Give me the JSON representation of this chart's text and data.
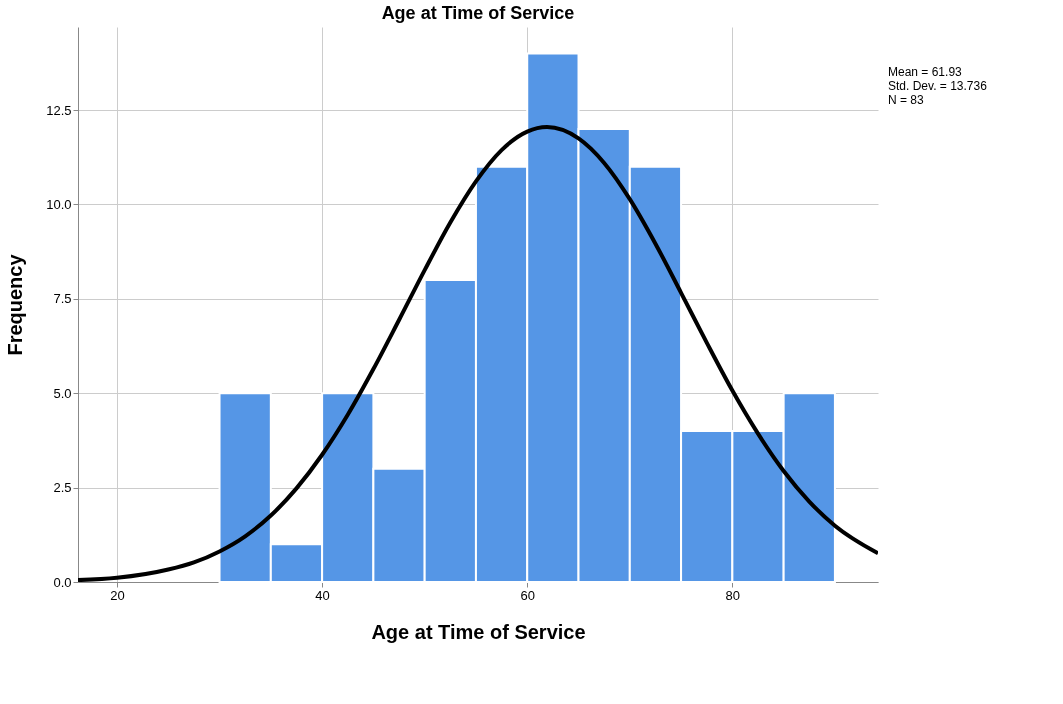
{
  "chart_data": {
    "type": "histogram",
    "title": "Age at Time of Service",
    "xlabel": "Age at Time of Service",
    "ylabel": "Frequency",
    "bins": [
      30,
      35,
      40,
      45,
      50,
      55,
      60,
      65,
      70,
      75,
      80,
      85,
      90
    ],
    "series": [
      {
        "type": "histogram",
        "color": "#5596e6",
        "values": [
          5,
          1,
          5,
          3,
          8,
          11,
          14,
          12,
          11,
          4,
          4,
          5
        ]
      },
      {
        "type": "line",
        "color": "#000000",
        "x": [
          16.2,
          20,
          25,
          27.5,
          30,
          32.5,
          35,
          37.5,
          40,
          42.5,
          45,
          47.5,
          50,
          52.5,
          55,
          57.5,
          60,
          61.93,
          65,
          67.5,
          70,
          72.5,
          75,
          77.5,
          80,
          82.5,
          85,
          87.5,
          90,
          94.2
        ],
        "values": [
          0.05,
          0.11,
          0.33,
          0.52,
          0.81,
          1.21,
          1.76,
          2.48,
          3.37,
          4.43,
          5.64,
          6.94,
          8.26,
          9.52,
          10.61,
          11.44,
          11.93,
          12.05,
          11.75,
          11.1,
          10.14,
          8.96,
          7.66,
          6.34,
          5.07,
          3.93,
          2.94,
          2.13,
          1.49,
          0.76
        ]
      }
    ],
    "xlim": [
      16.2,
      94.2
    ],
    "xticks": [
      20,
      40,
      60,
      80
    ],
    "ylim": [
      0,
      14.7
    ],
    "yticks": [
      {
        "value": 0,
        "label": "0.0"
      },
      {
        "value": 2.5,
        "label": "2.5"
      },
      {
        "value": 5,
        "label": "5.0"
      },
      {
        "value": 7.5,
        "label": "7.5"
      },
      {
        "value": 10,
        "label": "10.0"
      },
      {
        "value": 12.5,
        "label": "12.5"
      }
    ],
    "grid": true,
    "annotations": [
      "Mean = 61.93",
      "Std. Dev. = 13.736",
      "N = 83"
    ]
  }
}
